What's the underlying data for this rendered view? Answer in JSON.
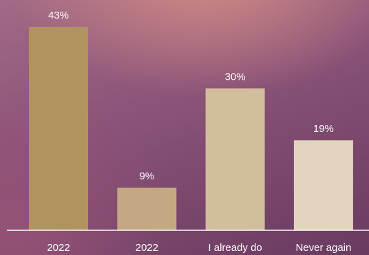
{
  "chart_data": {
    "type": "bar",
    "categories": [
      "2022",
      "2022",
      "I already do",
      "Never again"
    ],
    "values": [
      43,
      9,
      30,
      19
    ],
    "value_labels": [
      "43%",
      "9%",
      "30%",
      "19%"
    ],
    "colors": [
      "#b0935f",
      "#c4a882",
      "#d2bd9c",
      "#e2d4bf"
    ],
    "ylim": [
      0,
      50
    ],
    "grid": false,
    "legend": "none"
  }
}
